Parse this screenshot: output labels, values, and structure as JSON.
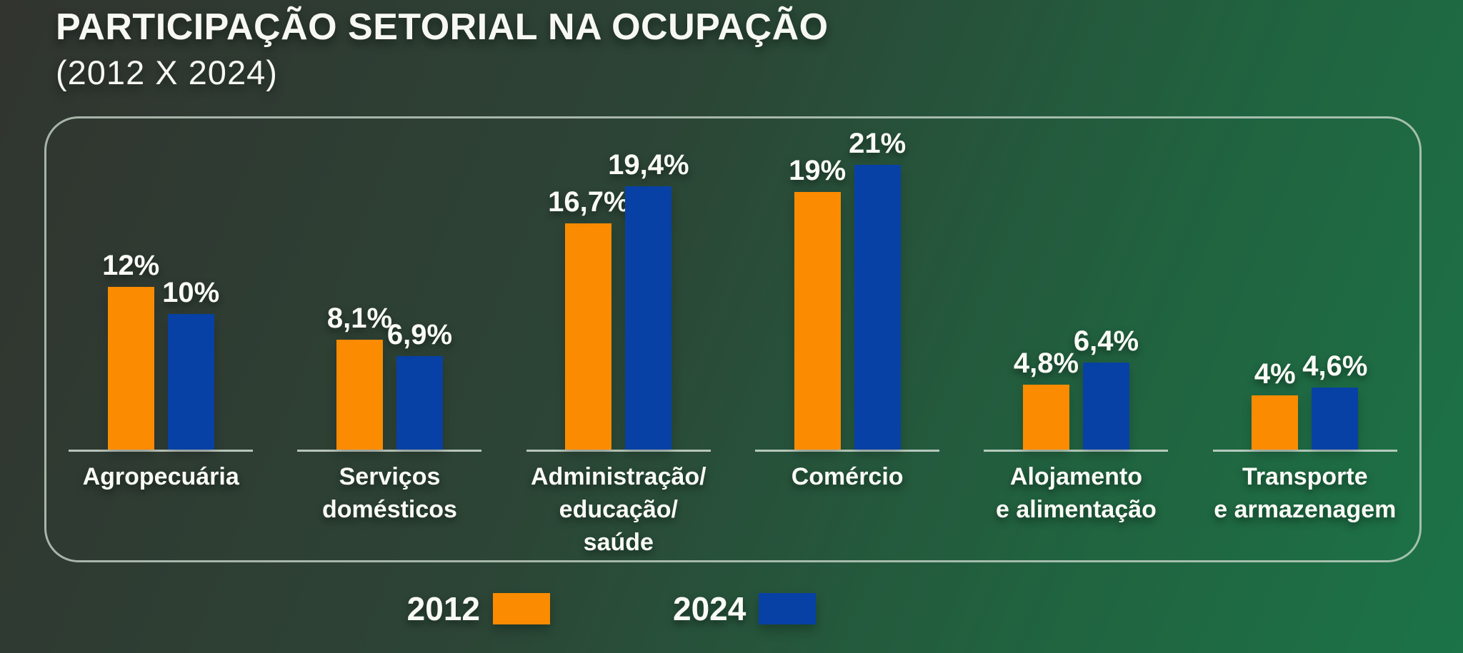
{
  "header": {
    "title": "PARTICIPAÇÃO SETORIAL NA OCUPAÇÃO",
    "subtitle": "(2012 X 2024)"
  },
  "chart_data": {
    "type": "bar",
    "title": "Participação setorial na ocupação (2012 x 2024)",
    "categories": [
      "Agropecuária",
      "Serviços\ndomésticos",
      "Administração/\neducação/\nsaúde",
      "Comércio",
      "Alojamento\ne alimentação",
      "Transporte\ne armazenagem"
    ],
    "series": [
      {
        "name": "2012",
        "color": "#fb8b00",
        "values": [
          12,
          8.1,
          16.7,
          19,
          4.8,
          4
        ],
        "labels": [
          "12%",
          "8,1%",
          "16,7%",
          "19%",
          "4,8%",
          "4%"
        ]
      },
      {
        "name": "2024",
        "color": "#0841a5",
        "values": [
          10,
          6.9,
          19.4,
          21,
          6.4,
          4.6
        ],
        "labels": [
          "10%",
          "6,9%",
          "19,4%",
          "21%",
          "6,4%",
          "4,6%"
        ]
      }
    ],
    "value_suffix": "%",
    "decimal_separator": ",",
    "ylim": [
      0,
      21
    ],
    "grid": false,
    "axis": "per-group baseline segments only, no y-axis",
    "legend_position": "bottom"
  },
  "legend": {
    "items": [
      {
        "label": "2012",
        "color": "#fb8b00"
      },
      {
        "label": "2024",
        "color": "#0841a5"
      }
    ]
  },
  "colors": {
    "background_start": "#31342f",
    "background_end": "#1c7347",
    "panel_border": "#c5d4c8",
    "text": "#fafbf6",
    "baseline": "#d0dcd2"
  }
}
